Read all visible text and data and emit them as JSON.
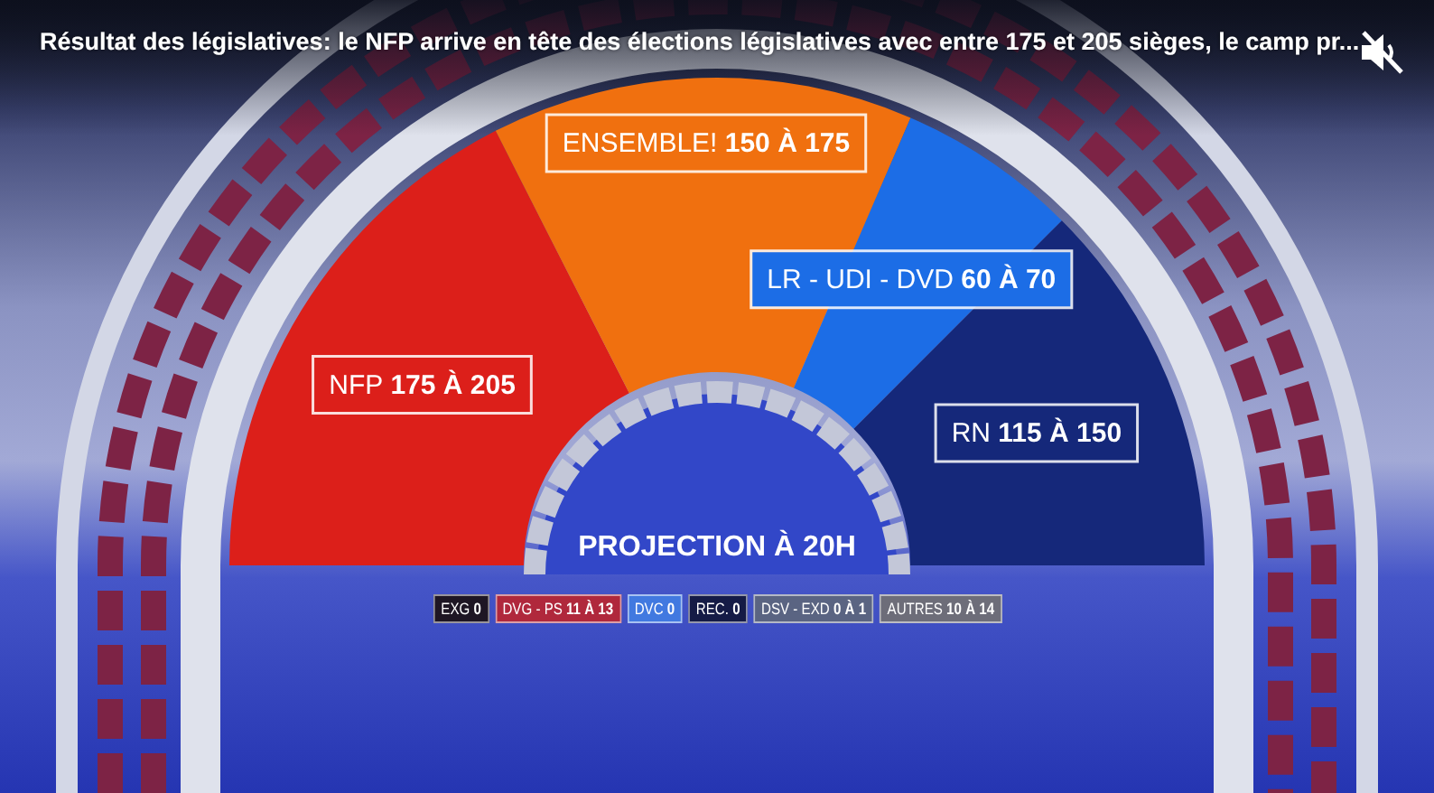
{
  "chart_data": {
    "type": "donut",
    "title": "Résultat des législatives: le NFP arrive en tête des élections législatives avec entre 175 et 205 sièges, le camp pr...",
    "subtitle": "PROJECTION À 20H",
    "categories": [
      "NFP 175 À 205",
      "ENSEMBLE! 150 À 175",
      "LR - UDI - DVD 60 À 70",
      "RN 115 À 150"
    ],
    "values": [
      35,
      28,
      12,
      25
    ],
    "colors": [
      "#dc1f1a",
      "#f0700f",
      "#1c6de6",
      "#15287a"
    ],
    "annotations": [
      "EXG 0",
      "DVG - PS 11 À 13",
      "DVC 0",
      "REC. 0",
      "DSV - EXD 0 À 1",
      "AUTRES 10 À 14"
    ]
  }
}
